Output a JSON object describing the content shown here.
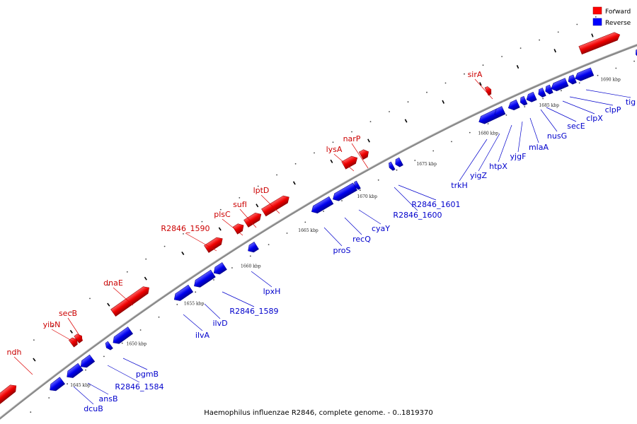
{
  "caption": "Haemophilus influenzae R2846, complete genome. - 0..1819370",
  "legend": [
    {
      "label": "Forward",
      "color": "#ff0000"
    },
    {
      "label": "Reverse",
      "color": "#0000ff"
    }
  ],
  "colors": {
    "forward": "#ff0000",
    "reverse": "#0000ff",
    "backbone": "#808080",
    "forward_label": "#cc0000",
    "reverse_label": "#0000cc"
  },
  "ticks": [
    "1645 kbp",
    "1650 kbp",
    "1655 kbp",
    "1660 kbp",
    "1665 kbp",
    "1670 kbp",
    "1675 kbp",
    "1680 kbp",
    "1685 kbp",
    "1690 kbp"
  ],
  "forward_genes": [
    "ndh",
    "yibN",
    "secB",
    "dnaE",
    "R2846_1590",
    "plsC",
    "sufI",
    "lptD",
    "lysA",
    "narP",
    "sirA"
  ],
  "reverse_genes": [
    "dcuB",
    "ansB",
    "R2846_1584",
    "pgmB",
    "ilvA",
    "ilvD",
    "R2846_1589",
    "lpxH",
    "proS",
    "recQ",
    "cyaY",
    "R2846_1600",
    "R2846_1601",
    "trkH",
    "yigZ",
    "htpX",
    "yjgF",
    "mlaA",
    "nusG",
    "secE",
    "clpX",
    "clpP",
    "tig"
  ]
}
